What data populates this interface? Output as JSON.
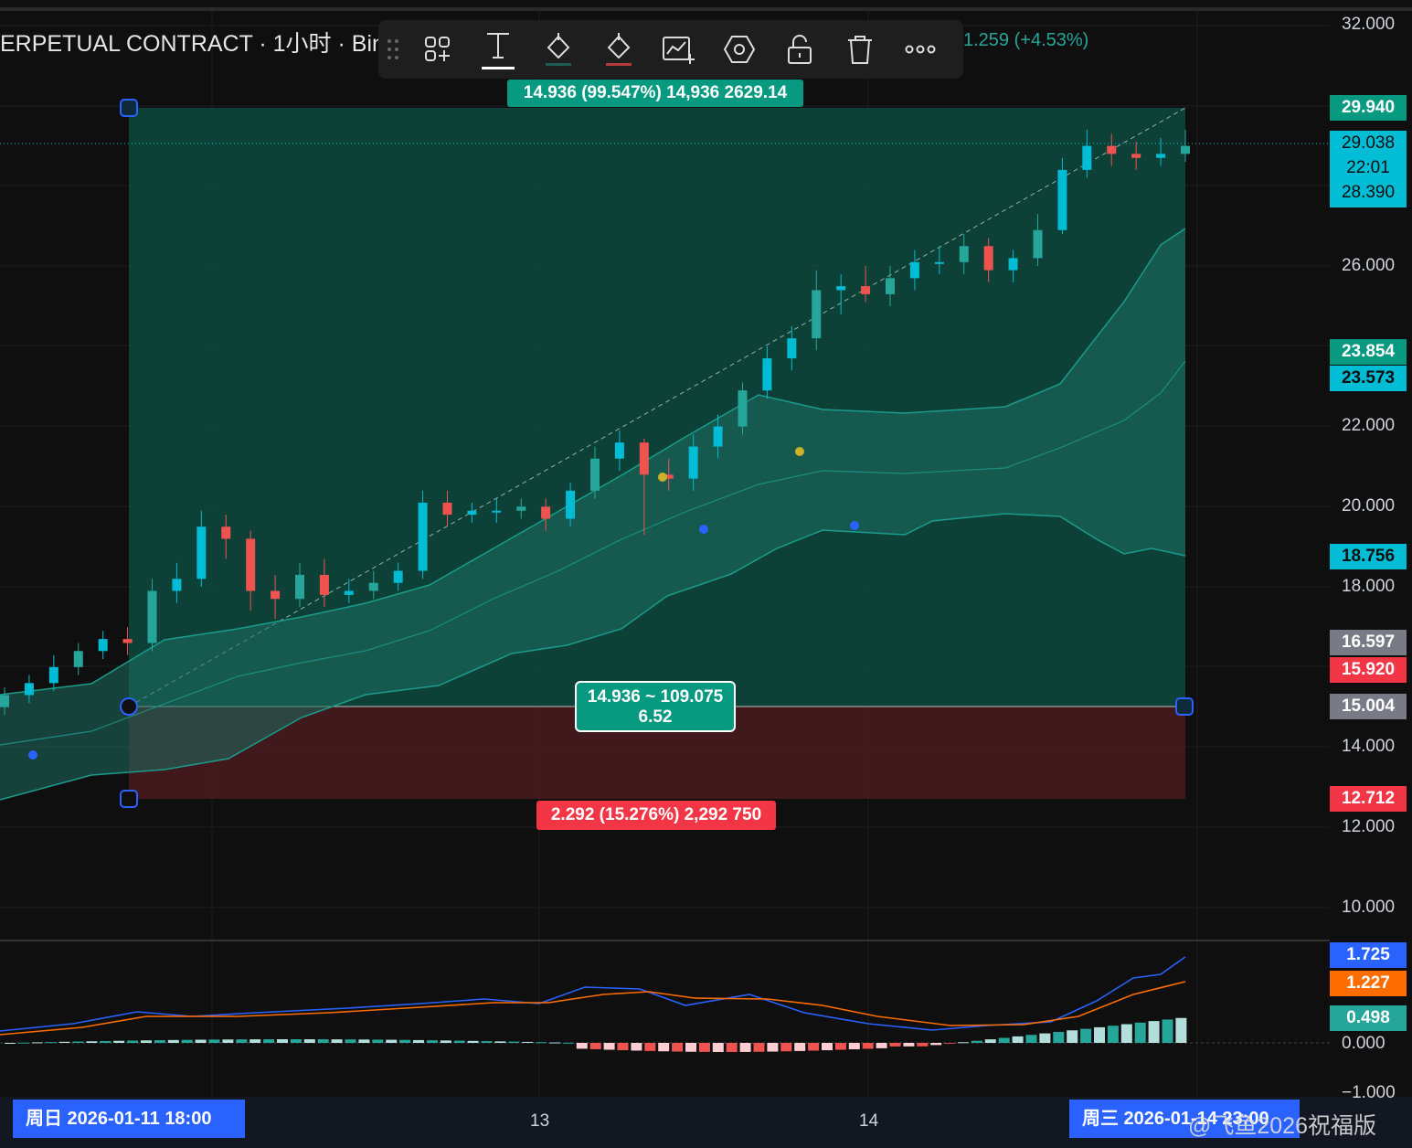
{
  "header": {
    "title": "ERPETUAL CONTRACT · 1小时 · Bin",
    "change": "1.259 (+4.53%)"
  },
  "toolbar": {
    "tools": [
      "grip-icon",
      "template-icon",
      "text-icon",
      "fill-color-icon",
      "line-color-icon",
      "add-alert-icon",
      "settings-icon",
      "lock-icon",
      "delete-icon",
      "more-icon"
    ]
  },
  "price_axis": {
    "ticks": [
      "32.000",
      "26.000",
      "22.000",
      "20.000",
      "18.000",
      "14.000",
      "12.000",
      "10.000"
    ],
    "tags": [
      {
        "label": "29.940",
        "color": "#089981"
      },
      {
        "label": "23.854",
        "color": "#089981"
      },
      {
        "label": "23.573",
        "color": "#00bcd4"
      },
      {
        "label": "18.756",
        "color": "#00bcd4"
      },
      {
        "label": "16.597",
        "color": "#787b86"
      },
      {
        "label": "15.920",
        "color": "#f23645"
      },
      {
        "label": "15.004",
        "color": "#787b86"
      },
      {
        "label": "12.712",
        "color": "#f23645"
      }
    ],
    "current": {
      "price": "29.038",
      "countdown": "22:01",
      "open": "28.390"
    }
  },
  "macd_axis": {
    "ticks": [
      "0.000",
      "−1.000"
    ],
    "tags": [
      {
        "label": "1.725",
        "color": "#2962ff"
      },
      {
        "label": "1.227",
        "color": "#ff6d00"
      },
      {
        "label": "0.498",
        "color": "#26a69a"
      }
    ]
  },
  "time_axis": {
    "labels": [
      "13",
      "14"
    ],
    "start_date": "周日 2026-01-11    18:00",
    "end_date": "周三 2026-01-14 23:00"
  },
  "measure": {
    "top_label": "14.936 (99.547%) 14,936 2629.14",
    "center_line1": "14.936 ~ 109.075",
    "center_line2": "6.52",
    "bottom_label": "2.292 (15.276%) 2,292 750"
  },
  "watermark": "@飞鱼2026祝福版",
  "colors": {
    "up": "#00bcd4",
    "up_green": "#26a69a",
    "down": "#ef5350",
    "highlight": "#7e57c2",
    "macd": "#2962ff",
    "signal": "#ff6d00"
  },
  "chart_data": {
    "type": "candlestick",
    "ylim": [
      9.5,
      32.5
    ],
    "candles": [
      {
        "o": 15.0,
        "c": 15.3,
        "h": 15.5,
        "l": 14.8
      },
      {
        "o": 15.3,
        "c": 15.6,
        "h": 15.8,
        "l": 15.1
      },
      {
        "o": 15.6,
        "c": 16.0,
        "h": 16.3,
        "l": 15.4
      },
      {
        "o": 16.0,
        "c": 16.4,
        "h": 16.6,
        "l": 15.8
      },
      {
        "o": 16.4,
        "c": 16.7,
        "h": 16.9,
        "l": 16.2
      },
      {
        "o": 16.7,
        "c": 16.6,
        "h": 17.0,
        "l": 16.3
      },
      {
        "o": 16.6,
        "c": 17.9,
        "h": 18.2,
        "l": 16.4
      },
      {
        "o": 17.9,
        "c": 18.2,
        "h": 18.6,
        "l": 17.6
      },
      {
        "o": 18.2,
        "c": 19.5,
        "h": 19.9,
        "l": 18.0
      },
      {
        "o": 19.5,
        "c": 19.2,
        "h": 19.8,
        "l": 18.7
      },
      {
        "o": 19.2,
        "c": 17.9,
        "h": 19.4,
        "l": 17.4
      },
      {
        "o": 17.9,
        "c": 17.7,
        "h": 18.3,
        "l": 17.2
      },
      {
        "o": 17.7,
        "c": 18.3,
        "h": 18.6,
        "l": 17.5
      },
      {
        "o": 18.3,
        "c": 17.8,
        "h": 18.7,
        "l": 17.5
      },
      {
        "o": 17.8,
        "c": 17.9,
        "h": 18.2,
        "l": 17.6
      },
      {
        "o": 17.9,
        "c": 18.1,
        "h": 18.4,
        "l": 17.7
      },
      {
        "o": 18.1,
        "c": 18.4,
        "h": 18.6,
        "l": 17.9
      },
      {
        "o": 18.4,
        "c": 20.1,
        "h": 20.4,
        "l": 18.2
      },
      {
        "o": 20.1,
        "c": 19.8,
        "h": 20.4,
        "l": 19.5
      },
      {
        "o": 19.8,
        "c": 19.9,
        "h": 20.1,
        "l": 19.6
      },
      {
        "o": 19.9,
        "c": 19.9,
        "h": 20.2,
        "l": 19.6
      },
      {
        "o": 19.9,
        "c": 20.0,
        "h": 20.2,
        "l": 19.7
      },
      {
        "o": 20.0,
        "c": 19.7,
        "h": 20.2,
        "l": 19.4
      },
      {
        "o": 19.7,
        "c": 20.4,
        "h": 20.6,
        "l": 19.5
      },
      {
        "o": 20.4,
        "c": 21.2,
        "h": 21.5,
        "l": 20.2
      },
      {
        "o": 21.2,
        "c": 21.6,
        "h": 21.9,
        "l": 20.9
      },
      {
        "o": 21.6,
        "c": 20.8,
        "h": 21.7,
        "l": 19.3
      },
      {
        "o": 20.8,
        "c": 20.7,
        "h": 21.2,
        "l": 20.4
      },
      {
        "o": 20.7,
        "c": 21.5,
        "h": 21.8,
        "l": 20.4
      },
      {
        "o": 21.5,
        "c": 22.0,
        "h": 22.3,
        "l": 21.2
      },
      {
        "o": 22.0,
        "c": 22.9,
        "h": 23.1,
        "l": 21.8
      },
      {
        "o": 22.9,
        "c": 23.7,
        "h": 24.0,
        "l": 22.7
      },
      {
        "o": 23.7,
        "c": 24.2,
        "h": 24.5,
        "l": 23.4
      },
      {
        "o": 24.2,
        "c": 25.4,
        "h": 25.9,
        "l": 23.9
      },
      {
        "o": 25.4,
        "c": 25.5,
        "h": 25.8,
        "l": 24.8
      },
      {
        "o": 25.5,
        "c": 25.3,
        "h": 26.0,
        "l": 25.1
      },
      {
        "o": 25.3,
        "c": 25.7,
        "h": 26.0,
        "l": 25.0
      },
      {
        "o": 25.7,
        "c": 26.1,
        "h": 26.4,
        "l": 25.4
      },
      {
        "o": 26.1,
        "c": 26.1,
        "h": 26.5,
        "l": 25.8
      },
      {
        "o": 26.1,
        "c": 26.5,
        "h": 26.8,
        "l": 25.8
      },
      {
        "o": 26.5,
        "c": 25.9,
        "h": 26.7,
        "l": 25.6
      },
      {
        "o": 25.9,
        "c": 26.2,
        "h": 26.4,
        "l": 25.6
      },
      {
        "o": 26.2,
        "c": 26.9,
        "h": 27.3,
        "l": 26.0
      },
      {
        "o": 26.9,
        "c": 28.4,
        "h": 28.7,
        "l": 26.8
      },
      {
        "o": 28.4,
        "c": 29.0,
        "h": 29.4,
        "l": 28.2
      },
      {
        "o": 29.0,
        "c": 28.8,
        "h": 29.3,
        "l": 28.5
      },
      {
        "o": 28.8,
        "c": 28.7,
        "h": 29.1,
        "l": 28.4
      },
      {
        "o": 28.7,
        "c": 28.8,
        "h": 29.2,
        "l": 28.5
      },
      {
        "o": 28.8,
        "c": 29.0,
        "h": 29.4,
        "l": 28.6
      }
    ]
  }
}
